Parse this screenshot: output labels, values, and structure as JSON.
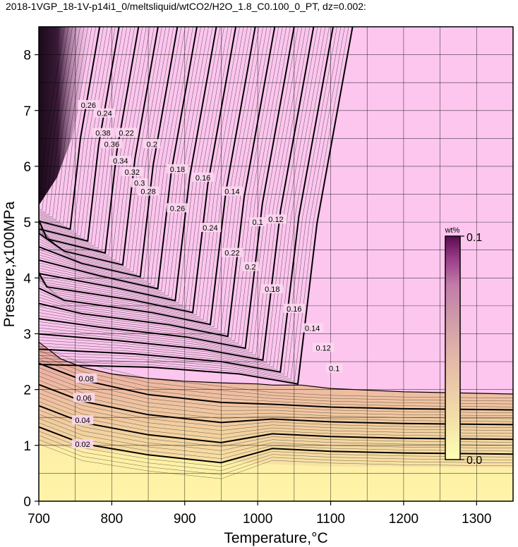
{
  "chart_data": {
    "type": "contour",
    "title": "2018-1VGP_18-1V-p14i1_0/meltsliquid/wtCO2/H2O_1.8_C0.100_0_PT, dz=0.002:",
    "xlabel": "Temperature,°C",
    "ylabel": "Pressure,x100MPa",
    "xlim": [
      700,
      1350
    ],
    "ylim": [
      0,
      8.5
    ],
    "xticks": [
      700,
      800,
      900,
      1000,
      1100,
      1200,
      1300
    ],
    "yticks": [
      0,
      1,
      2,
      3,
      4,
      5,
      6,
      7,
      8
    ],
    "grid": true,
    "contour_interval": 0.002,
    "colorbar": {
      "unit": "wt%",
      "min_label": "0.0",
      "max_label": "0.1",
      "range": [
        0.0,
        0.1
      ],
      "colors": [
        "#ffffb3",
        "#f2dca8",
        "#e4b8a8",
        "#d2a0a8",
        "#c27ca8",
        "#9a3c88",
        "#5a0a50"
      ]
    },
    "colors": {
      "saturated_region": "#fcc6ee",
      "low_region": "#fff4a8"
    },
    "contour_labels": [
      {
        "value": "0.02",
        "x": 760,
        "y": 1.02
      },
      {
        "value": "0.04",
        "x": 760,
        "y": 1.45
      },
      {
        "value": "0.06",
        "x": 762,
        "y": 1.85
      },
      {
        "value": "0.08",
        "x": 765,
        "y": 2.2
      },
      {
        "value": "0.1",
        "x": 1000,
        "y": 5.0
      },
      {
        "value": "0.1",
        "x": 1105,
        "y": 2.38
      },
      {
        "value": "0.12",
        "x": 1025,
        "y": 5.05
      },
      {
        "value": "0.12",
        "x": 1090,
        "y": 2.75
      },
      {
        "value": "0.14",
        "x": 965,
        "y": 5.55
      },
      {
        "value": "0.14",
        "x": 1075,
        "y": 3.1
      },
      {
        "value": "0.16",
        "x": 925,
        "y": 5.8
      },
      {
        "value": "0.16",
        "x": 1050,
        "y": 3.45
      },
      {
        "value": "0.18",
        "x": 890,
        "y": 5.95
      },
      {
        "value": "0.18",
        "x": 1020,
        "y": 3.8
      },
      {
        "value": "0.2",
        "x": 855,
        "y": 6.4
      },
      {
        "value": "0.2",
        "x": 990,
        "y": 4.2
      },
      {
        "value": "0.22",
        "x": 820,
        "y": 6.6
      },
      {
        "value": "0.22",
        "x": 965,
        "y": 4.45
      },
      {
        "value": "0.24",
        "x": 790,
        "y": 6.95
      },
      {
        "value": "0.24",
        "x": 935,
        "y": 4.9
      },
      {
        "value": "0.26",
        "x": 768,
        "y": 7.1
      },
      {
        "value": "0.26",
        "x": 890,
        "y": 5.25
      },
      {
        "value": "0.28",
        "x": 850,
        "y": 5.55
      },
      {
        "value": "0.3",
        "x": 838,
        "y": 5.7
      },
      {
        "value": "0.32",
        "x": 828,
        "y": 5.9
      },
      {
        "value": "0.34",
        "x": 812,
        "y": 6.1
      },
      {
        "value": "0.36",
        "x": 800,
        "y": 6.4
      },
      {
        "value": "0.38",
        "x": 788,
        "y": 6.6
      }
    ]
  }
}
